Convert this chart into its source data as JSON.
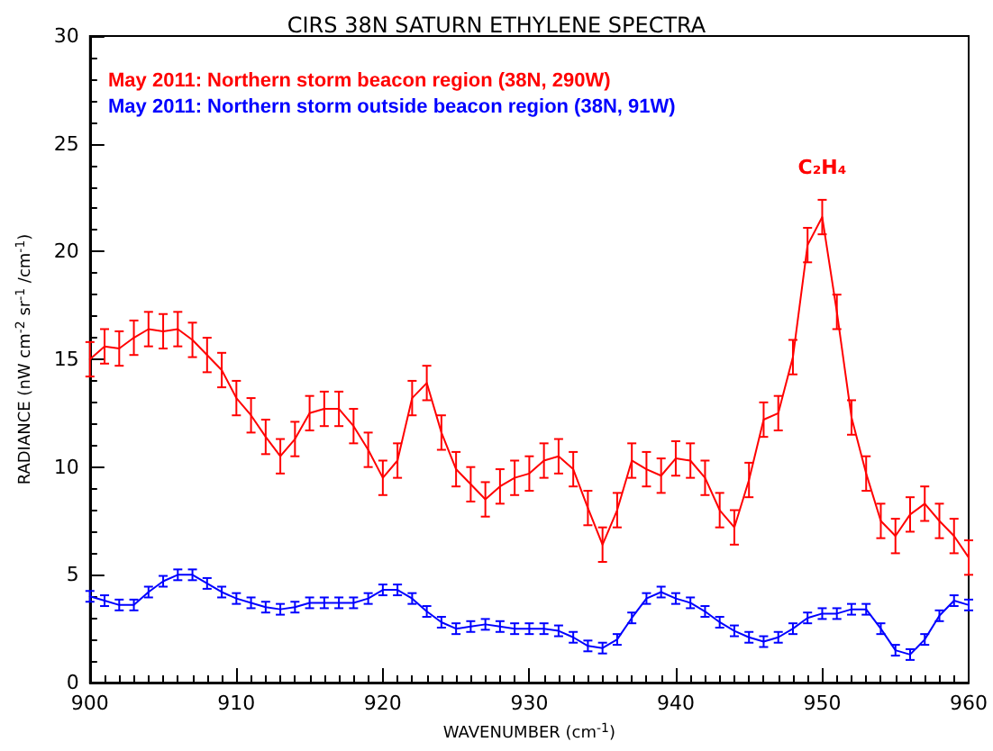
{
  "chart_data": {
    "type": "line",
    "title": "CIRS 38N SATURN ETHYLENE SPECTRA",
    "xlabel": "WAVENUMBER (cm$^{-1}$)",
    "ylabel": "RADIANCE (nW cm$^{-2}$ sr$^{-1}$ /cm$^{-1}$)",
    "x": [
      900,
      901,
      902,
      903,
      904,
      905,
      906,
      907,
      908,
      909,
      910,
      911,
      912,
      913,
      914,
      915,
      916,
      917,
      918,
      919,
      920,
      921,
      922,
      923,
      924,
      925,
      926,
      927,
      928,
      929,
      930,
      931,
      932,
      933,
      934,
      935,
      936,
      937,
      938,
      939,
      940,
      941,
      942,
      943,
      944,
      945,
      946,
      947,
      948,
      949,
      950,
      951,
      952,
      953,
      954,
      955,
      956,
      957,
      958,
      959,
      960
    ],
    "series": [
      {
        "name": "May 2011: Northern storm beacon region (38N, 290W)",
        "color": "#ff0000",
        "values": [
          15.0,
          15.6,
          15.5,
          16.0,
          16.4,
          16.3,
          16.4,
          15.9,
          15.2,
          14.5,
          13.2,
          12.4,
          11.4,
          10.5,
          11.3,
          12.5,
          12.7,
          12.7,
          11.9,
          10.8,
          9.5,
          10.3,
          13.2,
          13.9,
          11.6,
          9.9,
          9.2,
          8.5,
          9.1,
          9.5,
          9.7,
          10.3,
          10.5,
          9.9,
          8.1,
          6.4,
          8.0,
          10.3,
          9.9,
          9.6,
          10.4,
          10.3,
          9.5,
          8.0,
          7.2,
          9.4,
          12.2,
          12.5,
          15.1,
          20.3,
          21.6,
          17.2,
          12.3,
          9.7,
          7.5,
          6.8,
          7.8,
          8.3,
          7.5,
          6.8,
          5.8
        ],
        "errors": [
          0.8,
          0.8,
          0.8,
          0.8,
          0.8,
          0.8,
          0.8,
          0.8,
          0.8,
          0.8,
          0.8,
          0.8,
          0.8,
          0.8,
          0.8,
          0.8,
          0.8,
          0.8,
          0.8,
          0.8,
          0.8,
          0.8,
          0.8,
          0.8,
          0.8,
          0.8,
          0.8,
          0.8,
          0.8,
          0.8,
          0.8,
          0.8,
          0.8,
          0.8,
          0.8,
          0.8,
          0.8,
          0.8,
          0.8,
          0.8,
          0.8,
          0.8,
          0.8,
          0.8,
          0.8,
          0.8,
          0.8,
          0.8,
          0.8,
          0.8,
          0.8,
          0.8,
          0.8,
          0.8,
          0.8,
          0.8,
          0.8,
          0.8,
          0.8,
          0.8,
          0.8
        ]
      },
      {
        "name": "May 2011: Northern storm outside beacon region (38N, 91W)",
        "color": "#0000ff",
        "values": [
          4.0,
          3.8,
          3.6,
          3.6,
          4.2,
          4.7,
          5.0,
          5.0,
          4.6,
          4.2,
          3.9,
          3.7,
          3.5,
          3.4,
          3.5,
          3.7,
          3.7,
          3.7,
          3.7,
          3.9,
          4.3,
          4.3,
          3.9,
          3.3,
          2.8,
          2.5,
          2.6,
          2.7,
          2.6,
          2.5,
          2.5,
          2.5,
          2.4,
          2.1,
          1.7,
          1.6,
          2.0,
          3.0,
          3.9,
          4.2,
          3.9,
          3.7,
          3.3,
          2.8,
          2.4,
          2.1,
          1.9,
          2.1,
          2.5,
          3.0,
          3.2,
          3.2,
          3.4,
          3.4,
          2.5,
          1.5,
          1.3,
          2.0,
          3.1,
          3.8,
          3.6
        ],
        "errors": [
          0.25,
          0.25,
          0.25,
          0.25,
          0.25,
          0.25,
          0.25,
          0.25,
          0.25,
          0.25,
          0.25,
          0.25,
          0.25,
          0.25,
          0.25,
          0.25,
          0.25,
          0.25,
          0.25,
          0.25,
          0.25,
          0.25,
          0.25,
          0.25,
          0.25,
          0.25,
          0.25,
          0.25,
          0.25,
          0.25,
          0.25,
          0.25,
          0.25,
          0.25,
          0.25,
          0.25,
          0.25,
          0.25,
          0.25,
          0.25,
          0.25,
          0.25,
          0.25,
          0.25,
          0.25,
          0.25,
          0.25,
          0.25,
          0.25,
          0.25,
          0.25,
          0.25,
          0.25,
          0.25,
          0.25,
          0.25,
          0.25,
          0.25,
          0.25,
          0.25,
          0.25
        ]
      }
    ],
    "annotations": [
      "C₂H₄"
    ],
    "xlim": [
      900,
      960
    ],
    "xticks": [
      900,
      910,
      920,
      930,
      940,
      950,
      960
    ],
    "ylim": [
      0,
      30
    ],
    "yticks": [
      0,
      5,
      10,
      15,
      20,
      25,
      30
    ],
    "grid": false,
    "legend": "top left",
    "marker": "none",
    "line_style": "solid"
  }
}
